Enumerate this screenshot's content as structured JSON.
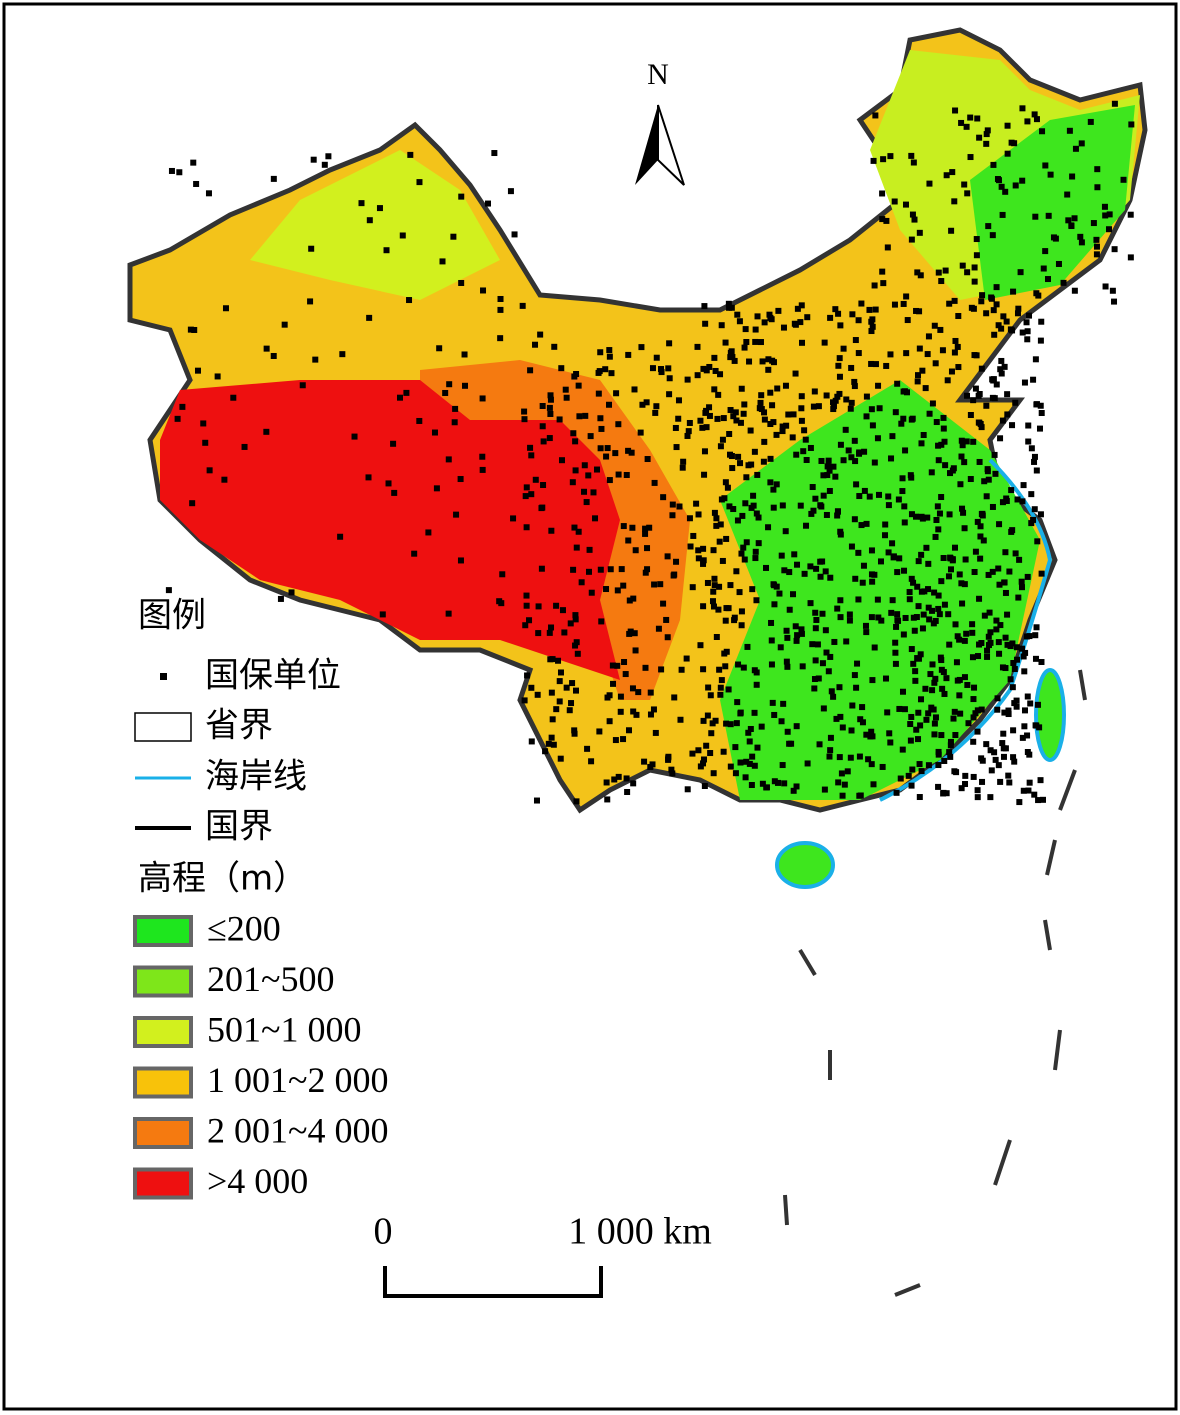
{
  "map": {
    "north_label": "N",
    "legend": {
      "title": "图例",
      "items": [
        {
          "label": "国保单位"
        },
        {
          "label": "省界"
        },
        {
          "label": "海岸线"
        },
        {
          "label": "国界"
        }
      ],
      "elevation_title": "高程（m）",
      "classes": [
        {
          "label": "≤200",
          "color": "#1ee61e"
        },
        {
          "label": "201~500",
          "color": "#7ee61a"
        },
        {
          "label": "501~1 000",
          "color": "#d2f01e"
        },
        {
          "label": "1 001~2 000",
          "color": "#f8c20a"
        },
        {
          "label": "2 001~4 000",
          "color": "#f57a10"
        },
        {
          "label": ">4 000",
          "color": "#ee1010"
        }
      ]
    },
    "scale_bar": {
      "labels": [
        "0",
        "1 000 km"
      ]
    }
  }
}
